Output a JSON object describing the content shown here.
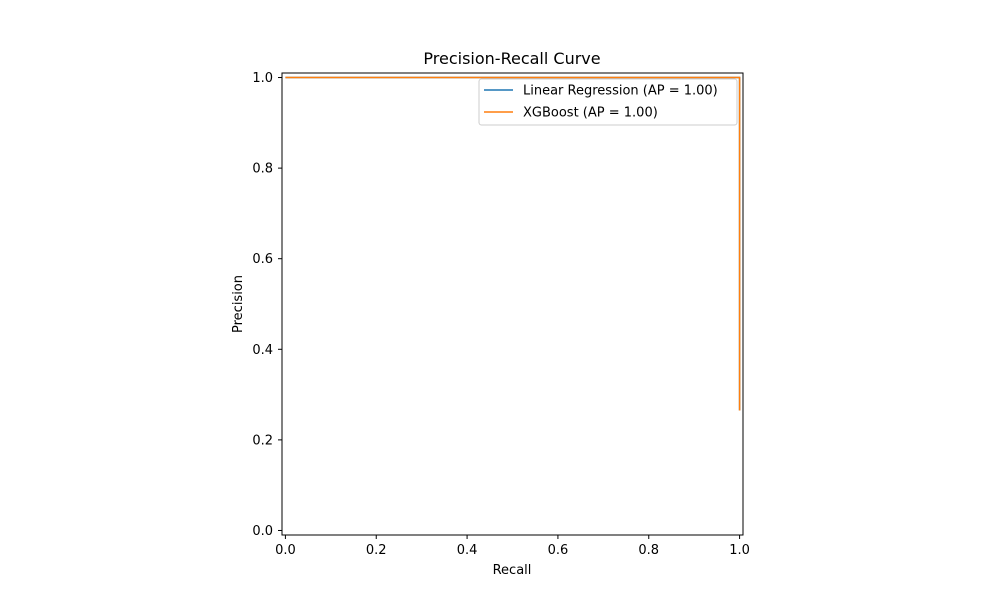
{
  "chart_data": {
    "type": "line",
    "title": "Precision-Recall Curve",
    "xlabel": "Recall",
    "ylabel": "Precision",
    "xlim": [
      -0.0075,
      1.0075
    ],
    "ylim": [
      -0.01,
      1.01
    ],
    "x_ticks": [
      "0.0",
      "0.2",
      "0.4",
      "0.6",
      "0.8",
      "1.0"
    ],
    "y_ticks": [
      "0.0",
      "0.2",
      "0.4",
      "0.6",
      "0.8",
      "1.0"
    ],
    "grid": false,
    "legend_position": "top-right",
    "series": [
      {
        "name": "Linear Regression (AP = 1.00)",
        "color": "#1f77b4",
        "points": [
          [
            0.0,
            1.0
          ],
          [
            1.0,
            1.0
          ],
          [
            1.0,
            0.265
          ]
        ]
      },
      {
        "name": "XGBoost (AP = 1.00)",
        "color": "#ff7f0e",
        "points": [
          [
            0.0,
            1.0
          ],
          [
            1.0,
            1.0
          ],
          [
            1.0,
            0.265
          ]
        ]
      }
    ]
  }
}
